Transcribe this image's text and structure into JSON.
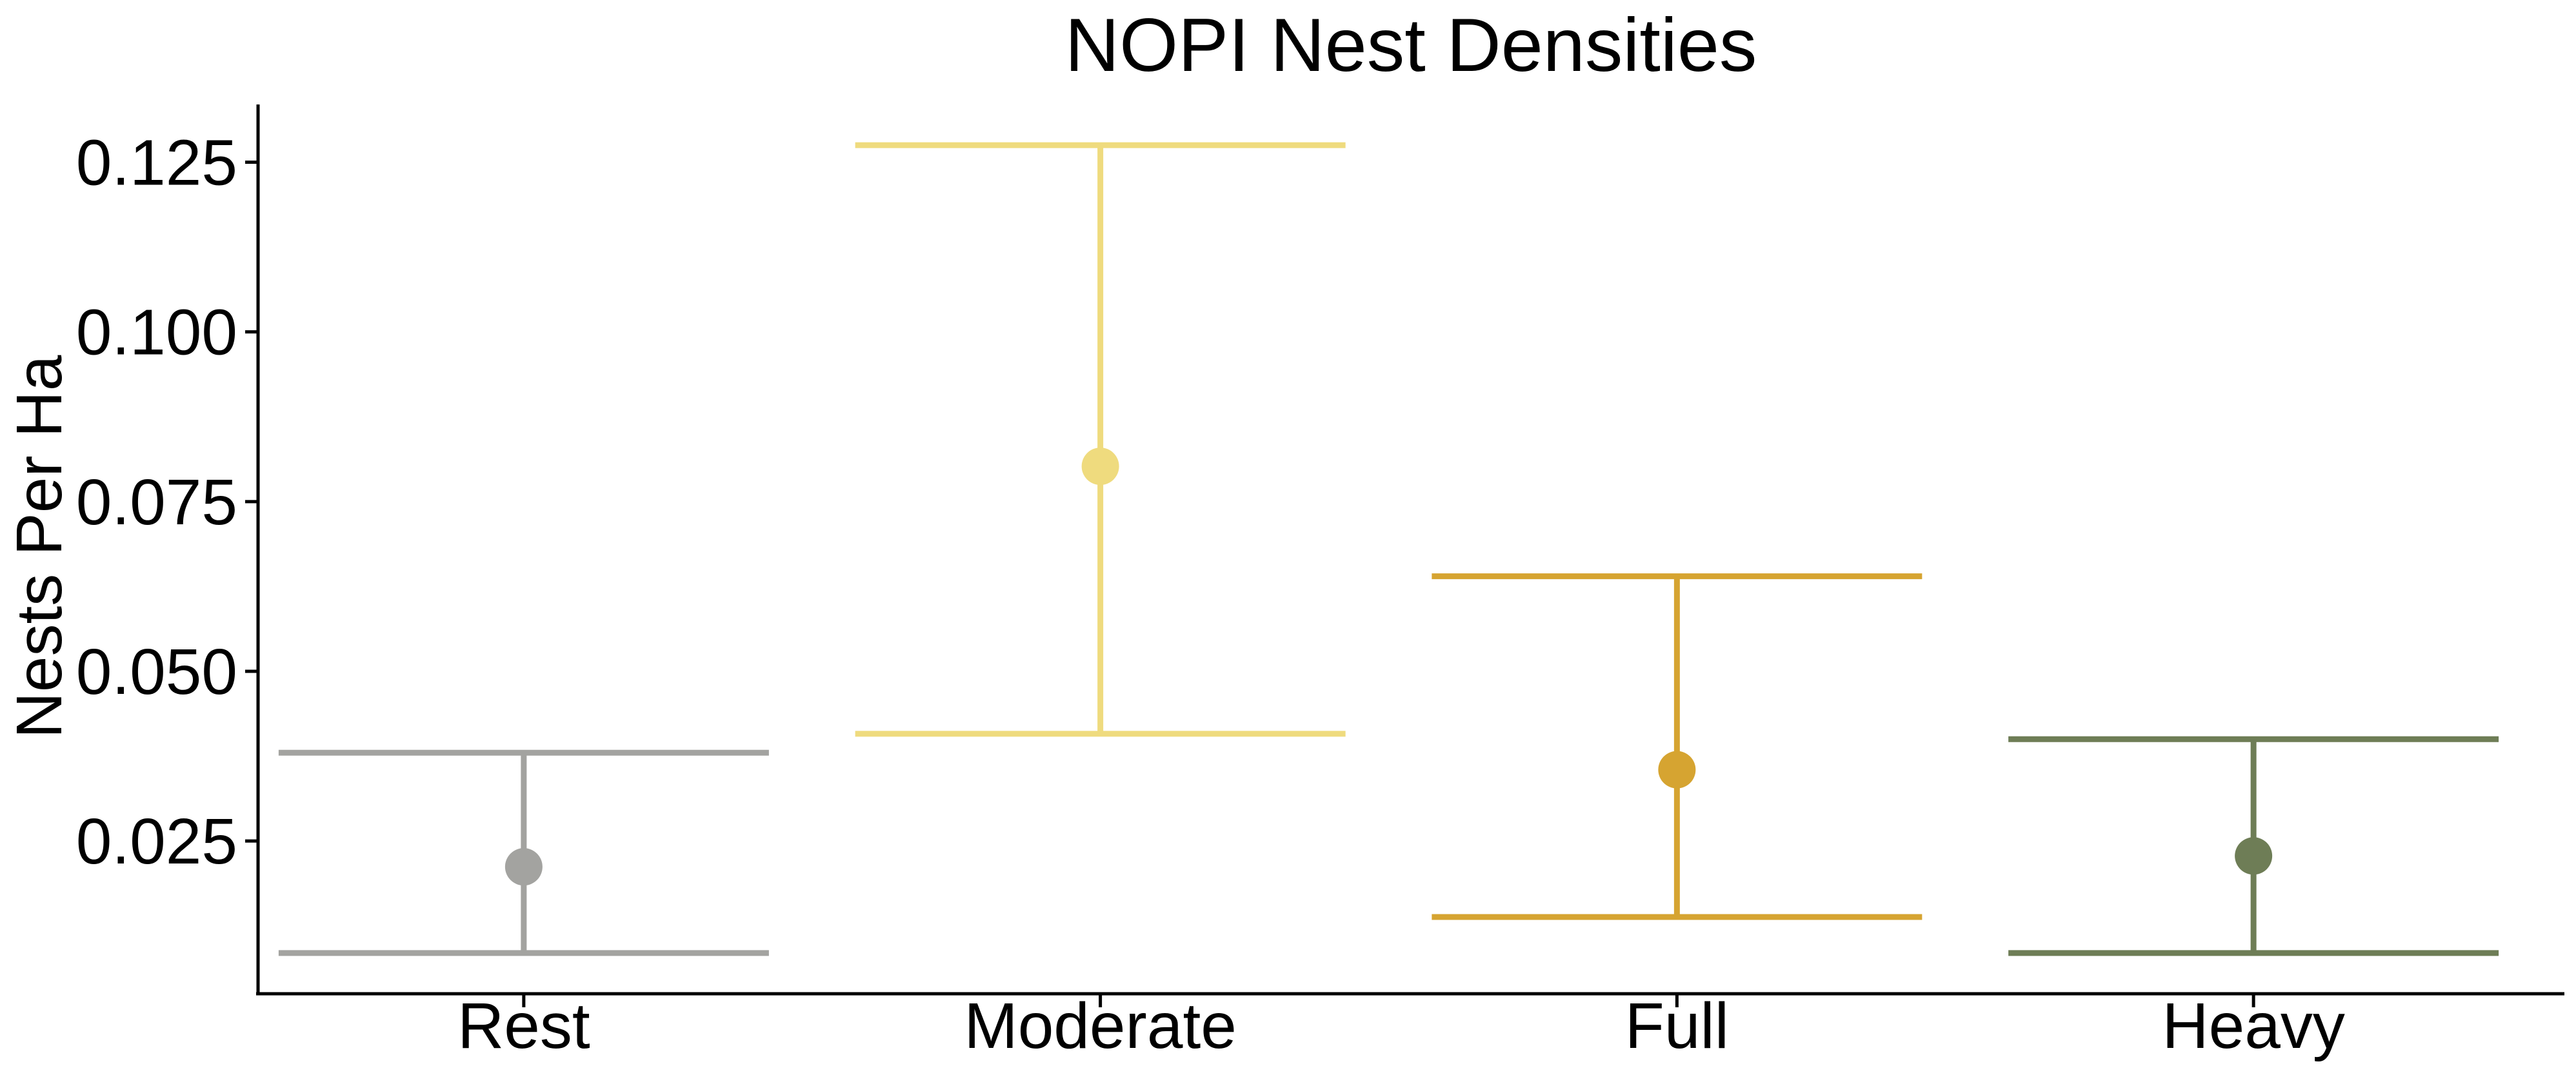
{
  "chart_data": {
    "type": "scatter",
    "title": "NOPI Nest Densities",
    "xlabel": "",
    "ylabel": "Nests Per Ha",
    "categories": [
      "Rest",
      "Moderate",
      "Full",
      "Heavy"
    ],
    "ylim": [
      0.0025,
      0.1335
    ],
    "yticks": [
      0.025,
      0.05,
      0.075,
      0.1,
      0.125
    ],
    "ytick_labels": [
      "0.025",
      "0.050",
      "0.075",
      "0.100",
      "0.125"
    ],
    "grid": false,
    "legend": "none",
    "series": [
      {
        "points": [
          {
            "category": "Rest",
            "estimate": 0.0212,
            "lower": 0.0085,
            "upper": 0.038,
            "color": "#A3A3A0"
          },
          {
            "category": "Moderate",
            "estimate": 0.0802,
            "lower": 0.0408,
            "upper": 0.1275,
            "color": "#EFDB7E"
          },
          {
            "category": "Full",
            "estimate": 0.0355,
            "lower": 0.0138,
            "upper": 0.064,
            "color": "#D6A431"
          },
          {
            "category": "Heavy",
            "estimate": 0.0228,
            "lower": 0.0085,
            "upper": 0.04,
            "color": "#6E7D56"
          }
        ]
      }
    ]
  }
}
